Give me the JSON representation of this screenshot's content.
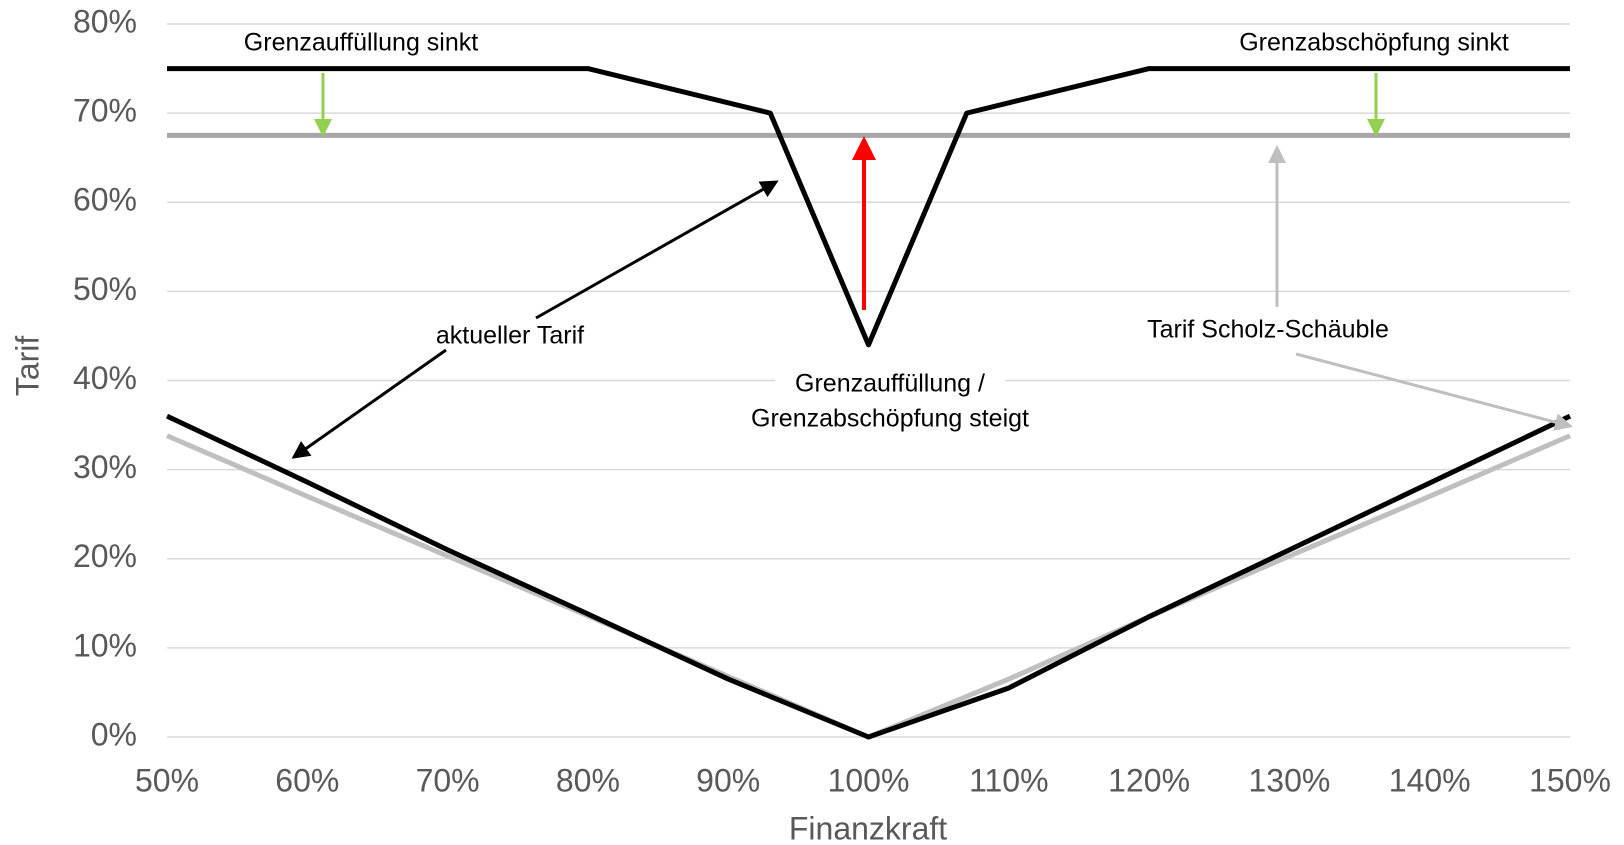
{
  "chart_data": {
    "type": "line",
    "xlabel": "Finanzkraft",
    "ylabel": "Tarif",
    "xlim": [
      50,
      150
    ],
    "ylim": [
      0,
      80
    ],
    "xticks": [
      {
        "value": 50,
        "label": "50%"
      },
      {
        "value": 60,
        "label": "60%"
      },
      {
        "value": 70,
        "label": "70%"
      },
      {
        "value": 80,
        "label": "80%"
      },
      {
        "value": 90,
        "label": "90%"
      },
      {
        "value": 100,
        "label": "100%"
      },
      {
        "value": 110,
        "label": "110%"
      },
      {
        "value": 120,
        "label": "120%"
      },
      {
        "value": 130,
        "label": "130%"
      },
      {
        "value": 140,
        "label": "140%"
      },
      {
        "value": 150,
        "label": "150%"
      }
    ],
    "yticks": [
      {
        "value": 0,
        "label": "0%"
      },
      {
        "value": 10,
        "label": "10%"
      },
      {
        "value": 20,
        "label": "20%"
      },
      {
        "value": 30,
        "label": "30%"
      },
      {
        "value": 40,
        "label": "40%"
      },
      {
        "value": 50,
        "label": "50%"
      },
      {
        "value": 60,
        "label": "60%"
      },
      {
        "value": 70,
        "label": "70%"
      },
      {
        "value": 80,
        "label": "80%"
      }
    ],
    "grid": true,
    "series": [
      {
        "color": "#a6a6a6",
        "x": [
          50,
          150
        ],
        "values": [
          67.5,
          67.5
        ]
      },
      {
        "color": "#000000",
        "x": [
          50,
          80,
          93,
          100,
          107,
          120,
          150
        ],
        "values": [
          75,
          75,
          70,
          44,
          70,
          75,
          75
        ]
      },
      {
        "color": "#bfbfbf",
        "x": [
          50,
          60,
          70,
          80,
          90,
          100,
          110,
          120,
          130,
          140,
          150
        ],
        "values": [
          33.8,
          27,
          20.3,
          13.6,
          6.8,
          0,
          6.5,
          13.5,
          20.3,
          27,
          33.8
        ]
      },
      {
        "color": "#000000",
        "x": [
          50,
          60,
          70,
          80,
          90,
          100,
          110,
          120,
          130,
          140,
          150
        ],
        "values": [
          36,
          28.6,
          21,
          13.8,
          6.5,
          0,
          5.5,
          13.5,
          21,
          28.5,
          36
        ]
      }
    ],
    "annotations": [
      "Grenzauffüllung sinkt",
      "Grenzabschöpfung sinkt",
      "aktueller Tarif",
      "Grenzauffüllung /",
      "Grenzabschöpfung steigt",
      "Tarif Scholz-Schäuble"
    ]
  }
}
